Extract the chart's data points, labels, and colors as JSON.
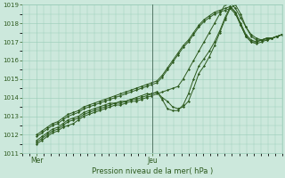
{
  "title": "",
  "xlabel": "Pression niveau de la mer( hPa )",
  "ylabel": "",
  "ylim": [
    1011,
    1019
  ],
  "yticks": [
    1011,
    1012,
    1013,
    1014,
    1015,
    1016,
    1017,
    1018,
    1019
  ],
  "xlim": [
    0,
    54
  ],
  "xtick_positions": [
    3,
    27
  ],
  "xtick_labels": [
    "Mer",
    "Jeu"
  ],
  "bg_color": "#cce8dc",
  "grid_color": "#99ccb8",
  "line_color": "#2d5a1e",
  "vline_x": 27,
  "n_pts": 48,
  "series": [
    [
      1011.5,
      1011.7,
      1011.9,
      1012.1,
      1012.2,
      1012.4,
      1012.5,
      1012.6,
      1012.8,
      1013.0,
      1013.1,
      1013.2,
      1013.3,
      1013.4,
      1013.5,
      1013.6,
      1013.6,
      1013.7,
      1013.8,
      1013.8,
      1013.9,
      1014.0,
      1014.1,
      1014.2,
      1014.3,
      1014.4,
      1014.5,
      1014.6,
      1015.0,
      1015.5,
      1016.0,
      1016.5,
      1017.0,
      1017.5,
      1018.0,
      1018.5,
      1019.0,
      1019.1,
      1018.8,
      1018.3,
      1017.8,
      1017.4,
      1017.2,
      1017.1,
      1017.1,
      1017.2,
      1017.3,
      1017.4
    ],
    [
      1011.6,
      1011.8,
      1012.0,
      1012.2,
      1012.3,
      1012.5,
      1012.7,
      1012.8,
      1012.9,
      1013.1,
      1013.2,
      1013.3,
      1013.4,
      1013.5,
      1013.6,
      1013.7,
      1013.7,
      1013.8,
      1013.9,
      1013.9,
      1014.0,
      1014.1,
      1014.2,
      1014.3,
      1014.0,
      1013.8,
      1013.5,
      1013.4,
      1013.5,
      1013.8,
      1014.5,
      1015.3,
      1015.7,
      1016.2,
      1016.8,
      1017.5,
      1018.2,
      1018.8,
      1019.0,
      1018.5,
      1017.8,
      1017.3,
      1017.1,
      1017.1,
      1017.2,
      1017.2,
      1017.3,
      1017.4
    ],
    [
      1011.7,
      1011.9,
      1012.1,
      1012.3,
      1012.4,
      1012.6,
      1012.8,
      1012.9,
      1013.0,
      1013.2,
      1013.3,
      1013.4,
      1013.5,
      1013.6,
      1013.7,
      1013.7,
      1013.8,
      1013.8,
      1013.9,
      1014.0,
      1014.1,
      1014.2,
      1014.2,
      1014.3,
      1013.9,
      1013.4,
      1013.3,
      1013.3,
      1013.6,
      1014.2,
      1015.0,
      1015.7,
      1016.1,
      1016.5,
      1017.0,
      1017.6,
      1018.3,
      1018.9,
      1018.6,
      1017.9,
      1017.3,
      1017.0,
      1017.0,
      1017.1,
      1017.2,
      1017.2,
      1017.3,
      1017.4
    ],
    [
      1011.9,
      1012.1,
      1012.3,
      1012.5,
      1012.6,
      1012.8,
      1013.0,
      1013.1,
      1013.2,
      1013.4,
      1013.5,
      1013.6,
      1013.7,
      1013.8,
      1013.9,
      1014.0,
      1014.1,
      1014.2,
      1014.3,
      1014.4,
      1014.5,
      1014.6,
      1014.7,
      1014.8,
      1015.1,
      1015.5,
      1015.9,
      1016.3,
      1016.7,
      1017.0,
      1017.4,
      1017.8,
      1018.1,
      1018.3,
      1018.5,
      1018.6,
      1018.7,
      1018.8,
      1018.5,
      1017.9,
      1017.3,
      1017.0,
      1016.9,
      1017.0,
      1017.1,
      1017.2,
      1017.3,
      1017.4
    ],
    [
      1012.0,
      1012.2,
      1012.4,
      1012.6,
      1012.7,
      1012.9,
      1013.1,
      1013.2,
      1013.3,
      1013.5,
      1013.6,
      1013.7,
      1013.8,
      1013.9,
      1014.0,
      1014.1,
      1014.2,
      1014.3,
      1014.4,
      1014.5,
      1014.6,
      1014.7,
      1014.8,
      1014.9,
      1015.2,
      1015.6,
      1016.0,
      1016.4,
      1016.8,
      1017.1,
      1017.5,
      1017.9,
      1018.2,
      1018.4,
      1018.6,
      1018.7,
      1018.8,
      1018.9,
      1018.6,
      1018.0,
      1017.4,
      1017.1,
      1017.0,
      1017.1,
      1017.2,
      1017.2,
      1017.3,
      1017.4
    ]
  ]
}
